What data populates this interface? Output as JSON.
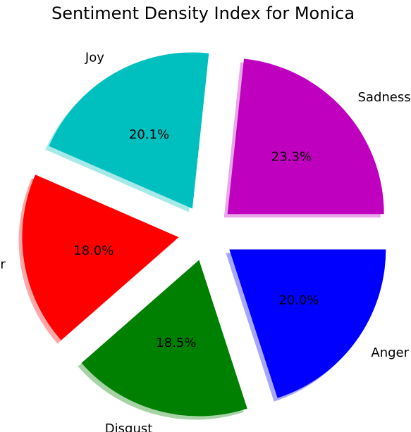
{
  "chart_data": {
    "type": "pie",
    "title": "Sentiment Density Index for Monica",
    "slices": [
      {
        "label": "Sadness",
        "value": 23.3,
        "pct_label": "23.3%",
        "color": "#bf00bf"
      },
      {
        "label": "Joy",
        "value": 20.1,
        "pct_label": "20.1%",
        "color": "#00bfbf"
      },
      {
        "label": "Fear",
        "value": 18.0,
        "pct_label": "18.0%",
        "color": "#ff0000"
      },
      {
        "label": "Disgust",
        "value": 18.5,
        "pct_label": "18.5%",
        "color": "#008000"
      },
      {
        "label": "Anger",
        "value": 20.0,
        "pct_label": "20.0%",
        "color": "#0000ff"
      }
    ],
    "exploded": true,
    "shadow": true,
    "legend": "none"
  }
}
